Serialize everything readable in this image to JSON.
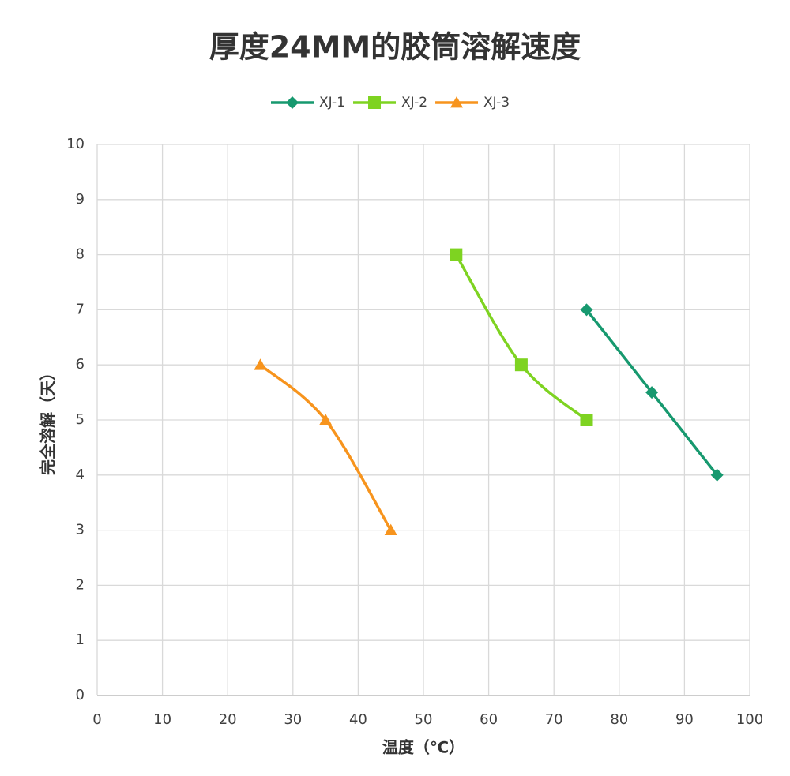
{
  "chart_data": {
    "type": "scatter",
    "title": "厚度24MM的胶筒溶解速度",
    "x_label": "温度（℃）",
    "y_label": "完全溶解（天）",
    "xlim": [
      0,
      100
    ],
    "xticks": [
      0,
      10,
      20,
      30,
      40,
      50,
      60,
      70,
      80,
      90,
      100
    ],
    "ylim": [
      0,
      10
    ],
    "yticks": [
      0,
      1,
      2,
      3,
      4,
      5,
      6,
      7,
      8,
      9,
      10
    ],
    "grid": true,
    "smooth": true,
    "legend": "top",
    "series": [
      {
        "name": "XJ-1",
        "color": "#17996f",
        "marker": "diamond",
        "x": [
          75,
          85,
          95
        ],
        "values": [
          7,
          5.5,
          4
        ]
      },
      {
        "name": "XJ-2",
        "color": "#7ed321",
        "marker": "square",
        "x": [
          55,
          65,
          75
        ],
        "values": [
          8,
          6,
          5
        ]
      },
      {
        "name": "XJ-3",
        "color": "#f7941d",
        "marker": "triangle",
        "x": [
          25,
          35,
          45
        ],
        "values": [
          6,
          5,
          3
        ]
      }
    ]
  }
}
